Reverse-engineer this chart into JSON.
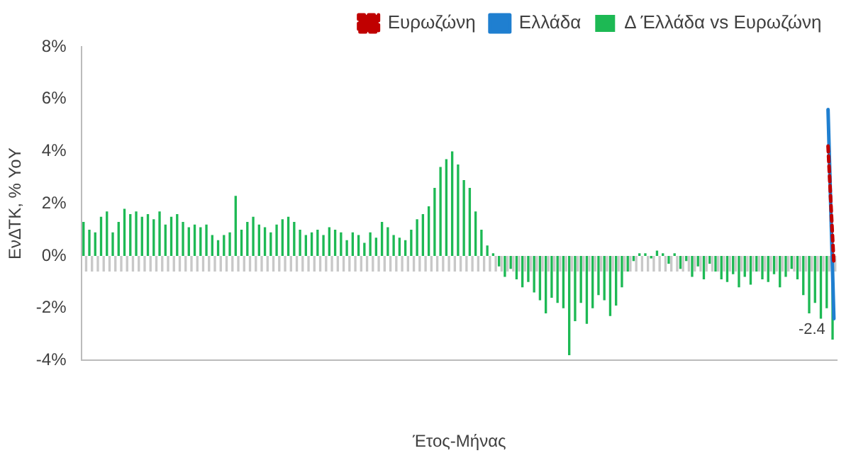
{
  "chart_data": {
    "type": "bar",
    "xlabel": "Έτος-Μήνας",
    "ylabel": "ΕνΔΤΚ, % YoY",
    "categories": [
      null,
      null,
      null,
      null,
      null,
      null,
      null,
      null,
      null,
      null,
      null,
      null,
      null,
      null,
      null,
      null,
      null,
      null,
      null,
      null,
      null,
      null,
      null,
      null,
      null,
      null,
      null,
      null,
      null,
      null,
      null,
      null,
      null,
      null,
      null,
      null,
      null,
      null,
      null,
      null,
      null,
      null,
      null,
      null,
      null,
      null,
      null,
      null,
      null,
      null,
      null,
      null,
      null,
      null,
      null,
      null,
      null,
      null,
      null,
      null,
      null,
      null,
      null,
      null,
      null,
      null,
      null,
      null,
      null,
      null,
      null,
      null,
      null,
      null,
      null,
      null,
      null,
      null,
      null,
      null,
      null,
      null,
      null,
      null,
      null,
      null,
      null,
      null,
      null,
      null,
      null,
      null,
      null,
      null,
      null,
      null,
      null,
      null,
      null,
      null,
      null,
      null,
      null,
      null,
      null,
      null,
      null,
      null,
      null,
      null,
      null,
      null,
      null,
      null,
      null,
      null,
      null,
      null,
      null,
      null,
      null,
      null,
      null,
      null,
      null,
      null,
      null,
      null,
      null
    ],
    "series": [
      {
        "name": "Δ Έλλάδα vs Ευρωζώνη",
        "color": "#1db954",
        "values": [
          1.3,
          1.0,
          0.9,
          1.5,
          1.7,
          0.9,
          1.3,
          1.8,
          1.6,
          1.7,
          1.5,
          1.6,
          1.4,
          1.7,
          1.2,
          1.5,
          1.6,
          1.3,
          1.1,
          1.2,
          1.1,
          1.2,
          0.8,
          0.6,
          0.8,
          0.9,
          2.3,
          1.0,
          1.3,
          1.5,
          1.2,
          1.1,
          0.9,
          1.2,
          1.4,
          1.5,
          1.3,
          1.0,
          0.8,
          0.9,
          1.0,
          0.8,
          1.1,
          1.0,
          0.9,
          0.6,
          0.9,
          0.8,
          0.5,
          0.9,
          0.7,
          1.3,
          1.1,
          0.8,
          0.7,
          0.6,
          1.0,
          1.4,
          1.6,
          1.9,
          2.6,
          3.4,
          3.7,
          4.0,
          3.5,
          2.9,
          2.6,
          1.7,
          1.0,
          0.4,
          0.1,
          -0.4,
          -0.8,
          -0.5,
          -0.9,
          -1.2,
          -1.0,
          -1.4,
          -1.7,
          -2.2,
          -1.6,
          -1.8,
          -2.0,
          -3.8,
          -2.5,
          -1.8,
          -2.6,
          -2.0,
          -1.5,
          -1.7,
          -2.3,
          -1.9,
          -1.2,
          -0.6,
          -0.2,
          0.1,
          0.1,
          -0.1,
          0.2,
          0.1,
          -0.3,
          0.1,
          -0.5,
          -0.2,
          -0.8,
          -0.4,
          -0.9,
          -0.3,
          -0.6,
          -0.9,
          -1.0,
          -0.7,
          -1.2,
          -0.8,
          -1.1,
          -0.6,
          -0.9,
          -1.0,
          -0.7,
          -1.2,
          -0.8,
          -0.5,
          -0.9,
          -1.5,
          -2.2,
          -1.8,
          -2.4,
          -2.0,
          -3.2
        ]
      },
      {
        "color": "#c8c8c8",
        "values": [
          -0.6,
          -0.6,
          -0.6,
          -0.6,
          -0.6,
          -0.6,
          -0.6,
          -0.6,
          -0.6,
          -0.6,
          -0.6,
          -0.6,
          -0.6,
          -0.6,
          -0.6,
          -0.6,
          -0.6,
          -0.6,
          -0.6,
          -0.6,
          -0.6,
          -0.6,
          -0.6,
          -0.6,
          -0.6,
          -0.6,
          -0.6,
          -0.6,
          -0.6,
          -0.6,
          -0.6,
          -0.6,
          -0.6,
          -0.6,
          -0.6,
          -0.6,
          -0.6,
          -0.6,
          -0.6,
          -0.6,
          -0.6,
          -0.6,
          -0.6,
          -0.6,
          -0.6,
          -0.6,
          -0.6,
          -0.6,
          -0.6,
          -0.6,
          -0.6,
          -0.6,
          -0.6,
          -0.6,
          -0.6,
          -0.6,
          -0.6,
          -0.6,
          -0.6,
          -0.6,
          -0.6,
          -0.6,
          -0.6,
          -0.6,
          -0.6,
          -0.6,
          -0.6,
          -0.6,
          -0.6,
          -0.6,
          -0.6,
          -0.6,
          -0.6,
          -0.6,
          -0.6,
          -0.6,
          -0.6,
          -0.6,
          -0.6,
          -0.6,
          -0.6,
          -0.6,
          -0.6,
          -0.6,
          -0.6,
          -0.6,
          -0.6,
          -0.6,
          -0.6,
          -0.6,
          -0.6,
          -0.6,
          -0.6,
          -0.6,
          -0.6,
          -0.6,
          -0.6,
          -0.6,
          -0.6,
          -0.6,
          -0.6,
          -0.6,
          -0.6,
          -0.6,
          -0.6,
          -0.6,
          -0.6,
          -0.6,
          -0.6,
          -0.6,
          -0.6,
          -0.6,
          -0.6,
          -0.6,
          -0.6,
          -0.6,
          -0.6,
          -0.6,
          -0.6,
          -0.6,
          -0.6,
          -0.6,
          -0.6,
          -0.6,
          -0.6,
          -0.6,
          -0.6,
          -0.6,
          -0.6
        ]
      },
      {
        "name": "Ελλάδα",
        "type": "line",
        "color": "#1f7fd0",
        "line_style": "solid",
        "values": [
          null,
          null,
          null,
          null,
          null,
          null,
          null,
          null,
          null,
          null,
          null,
          null,
          null,
          null,
          null,
          null,
          null,
          null,
          null,
          null,
          null,
          null,
          null,
          null,
          null,
          null,
          null,
          null,
          null,
          null,
          null,
          null,
          null,
          null,
          null,
          null,
          null,
          null,
          null,
          null,
          null,
          null,
          null,
          null,
          null,
          null,
          null,
          null,
          null,
          null,
          null,
          null,
          null,
          null,
          null,
          null,
          null,
          null,
          null,
          null,
          null,
          null,
          null,
          null,
          null,
          null,
          null,
          null,
          null,
          null,
          null,
          null,
          null,
          null,
          null,
          null,
          null,
          null,
          null,
          null,
          null,
          null,
          null,
          null,
          null,
          null,
          null,
          null,
          null,
          null,
          null,
          null,
          null,
          null,
          null,
          null,
          null,
          null,
          null,
          null,
          null,
          null,
          null,
          null,
          null,
          null,
          null,
          null,
          null,
          null,
          null,
          null,
          null,
          null,
          null,
          null,
          null,
          null,
          null,
          null,
          null,
          null,
          null,
          null,
          null,
          null,
          null,
          5.6,
          -2.4
        ],
        "value_labels": [
          null,
          null,
          null,
          null,
          null,
          null,
          null,
          null,
          null,
          null,
          null,
          null,
          null,
          null,
          null,
          null,
          null,
          null,
          null,
          null,
          null,
          null,
          null,
          null,
          null,
          null,
          null,
          null,
          null,
          null,
          null,
          null,
          null,
          null,
          null,
          null,
          null,
          null,
          null,
          null,
          null,
          null,
          null,
          null,
          null,
          null,
          null,
          null,
          null,
          null,
          null,
          null,
          null,
          null,
          null,
          null,
          null,
          null,
          null,
          null,
          null,
          null,
          null,
          null,
          null,
          null,
          null,
          null,
          null,
          null,
          null,
          null,
          null,
          null,
          null,
          null,
          null,
          null,
          null,
          null,
          null,
          null,
          null,
          null,
          null,
          null,
          null,
          null,
          null,
          null,
          null,
          null,
          null,
          null,
          null,
          null,
          null,
          null,
          null,
          null,
          null,
          null,
          null,
          null,
          null,
          null,
          null,
          null,
          null,
          null,
          null,
          null,
          null,
          null,
          null,
          null,
          null,
          null,
          null,
          null,
          null,
          null,
          null,
          null,
          null,
          null,
          null,
          null,
          "-2.4"
        ]
      },
      {
        "name": "Ευρωζώνη",
        "type": "line",
        "color": "#c00000",
        "line_style": "dashed",
        "values": [
          null,
          null,
          null,
          null,
          null,
          null,
          null,
          null,
          null,
          null,
          null,
          null,
          null,
          null,
          null,
          null,
          null,
          null,
          null,
          null,
          null,
          null,
          null,
          null,
          null,
          null,
          null,
          null,
          null,
          null,
          null,
          null,
          null,
          null,
          null,
          null,
          null,
          null,
          null,
          null,
          null,
          null,
          null,
          null,
          null,
          null,
          null,
          null,
          null,
          null,
          null,
          null,
          null,
          null,
          null,
          null,
          null,
          null,
          null,
          null,
          null,
          null,
          null,
          null,
          null,
          null,
          null,
          null,
          null,
          null,
          null,
          null,
          null,
          null,
          null,
          null,
          null,
          null,
          null,
          null,
          null,
          null,
          null,
          null,
          null,
          null,
          null,
          null,
          null,
          null,
          null,
          null,
          null,
          null,
          null,
          null,
          null,
          null,
          null,
          null,
          null,
          null,
          null,
          null,
          null,
          null,
          null,
          null,
          null,
          null,
          null,
          null,
          null,
          null,
          null,
          null,
          null,
          null,
          null,
          null,
          null,
          null,
          null,
          null,
          null,
          null,
          null,
          4.2,
          -0.3
        ]
      }
    ],
    "ylim": [
      -4,
      8
    ],
    "yticks": [
      {
        "value": -4,
        "label": "-4%"
      },
      {
        "value": -2,
        "label": "-2%"
      },
      {
        "value": 0,
        "label": "0%"
      },
      {
        "value": 2,
        "label": "2%"
      },
      {
        "value": 4,
        "label": "4%"
      },
      {
        "value": 6,
        "label": "6%"
      },
      {
        "value": 8,
        "label": "8%"
      }
    ],
    "grid": false,
    "legend": "top",
    "marker": "none"
  }
}
